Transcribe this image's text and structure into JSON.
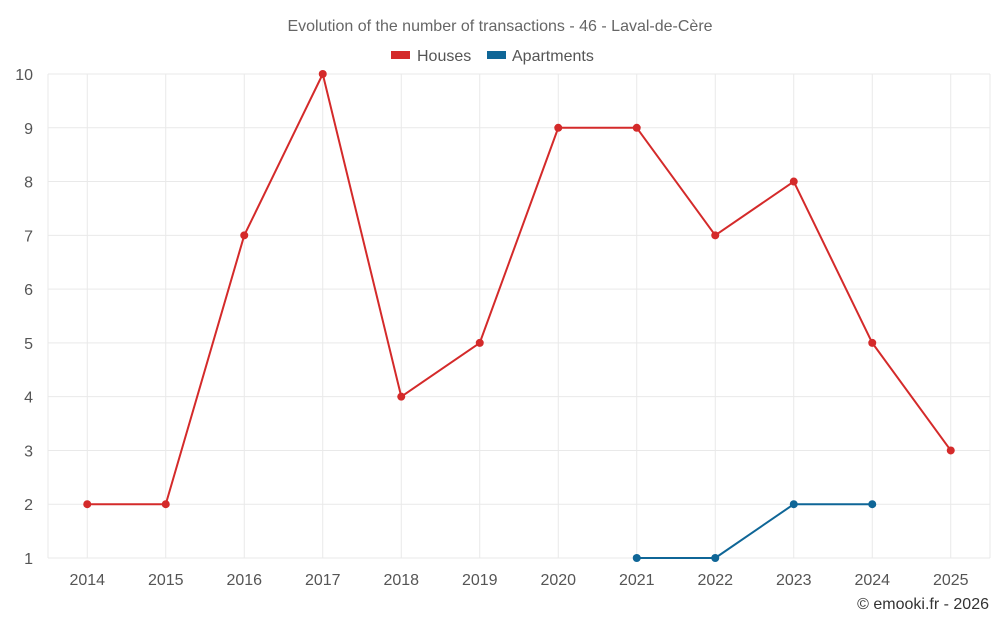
{
  "chart_data": {
    "type": "line",
    "title": "Evolution of the number of transactions - 46 - Laval-de-Cère",
    "categories": [
      "2014",
      "2015",
      "2016",
      "2017",
      "2018",
      "2019",
      "2020",
      "2021",
      "2022",
      "2023",
      "2024",
      "2025"
    ],
    "series": [
      {
        "name": "Houses",
        "color": "#d42a2a",
        "values": [
          2,
          2,
          7,
          10,
          4,
          5,
          9,
          9,
          7,
          8,
          5,
          3
        ]
      },
      {
        "name": "Apartments",
        "color": "#0f6697",
        "values": [
          null,
          null,
          null,
          null,
          null,
          null,
          null,
          1,
          1,
          2,
          2,
          null
        ]
      }
    ],
    "yticks": [
      "1",
      "2",
      "3",
      "4",
      "5",
      "6",
      "7",
      "8",
      "9",
      "10"
    ],
    "ylim": [
      1,
      10
    ],
    "xlabel": "",
    "ylabel": "",
    "grid": true,
    "legend_position": "top-center"
  },
  "credit": "© emooki.fr - 2026"
}
